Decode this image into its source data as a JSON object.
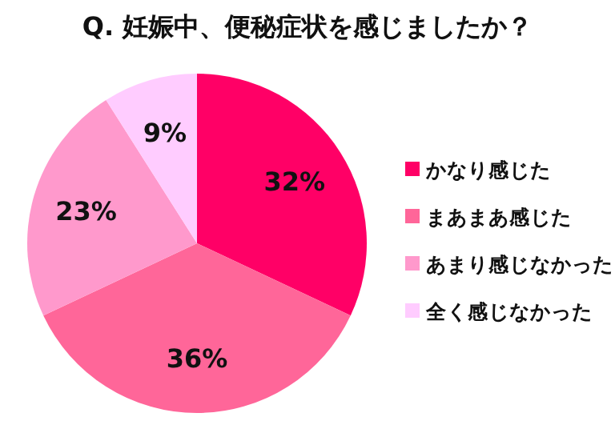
{
  "chart_data": {
    "type": "pie",
    "title": "Q. 妊娠中、便秘症状を感じましたか？",
    "categories": [
      "かなり感じた",
      "まあまあ感じた",
      "あまり感じなかった",
      "全く感じなかった"
    ],
    "values": [
      32,
      36,
      23,
      9
    ],
    "colors": [
      "#ff0066",
      "#ff6699",
      "#ff99cc",
      "#ffccff"
    ],
    "value_labels": [
      "32%",
      "36%",
      "23%",
      "9%"
    ],
    "legend": "right"
  }
}
